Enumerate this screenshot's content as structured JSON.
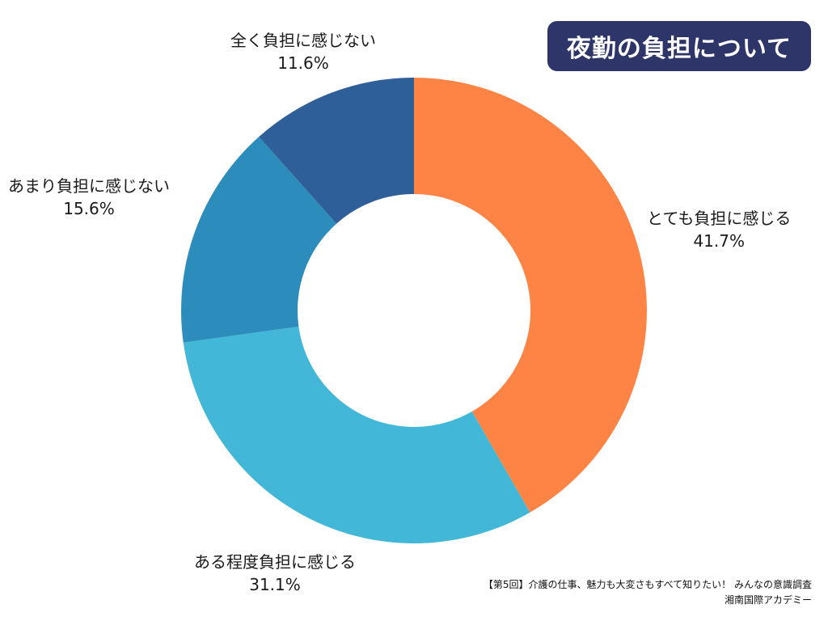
{
  "chart_data": {
    "type": "pie",
    "title": "夜勤の負担について",
    "categories": [
      "とても負担に感じる",
      "ある程度負担に感じる",
      "あまり負担に感じない",
      "全く負担に感じない"
    ],
    "values": [
      41.7,
      31.1,
      15.6,
      11.6
    ],
    "value_labels": [
      "41.7%",
      "31.1%",
      "15.6%",
      "11.6%"
    ],
    "colors": [
      "#fe8446",
      "#42b7d7",
      "#2c8cbb",
      "#2e5f98"
    ],
    "donut": true,
    "legend": "none (labels placed beside slices)"
  },
  "source": {
    "line1": "【第5回】介護の仕事、魅力も大変さもすべて知りたい！ みんなの意識調査",
    "line2": "湘南国際アカデミー"
  }
}
